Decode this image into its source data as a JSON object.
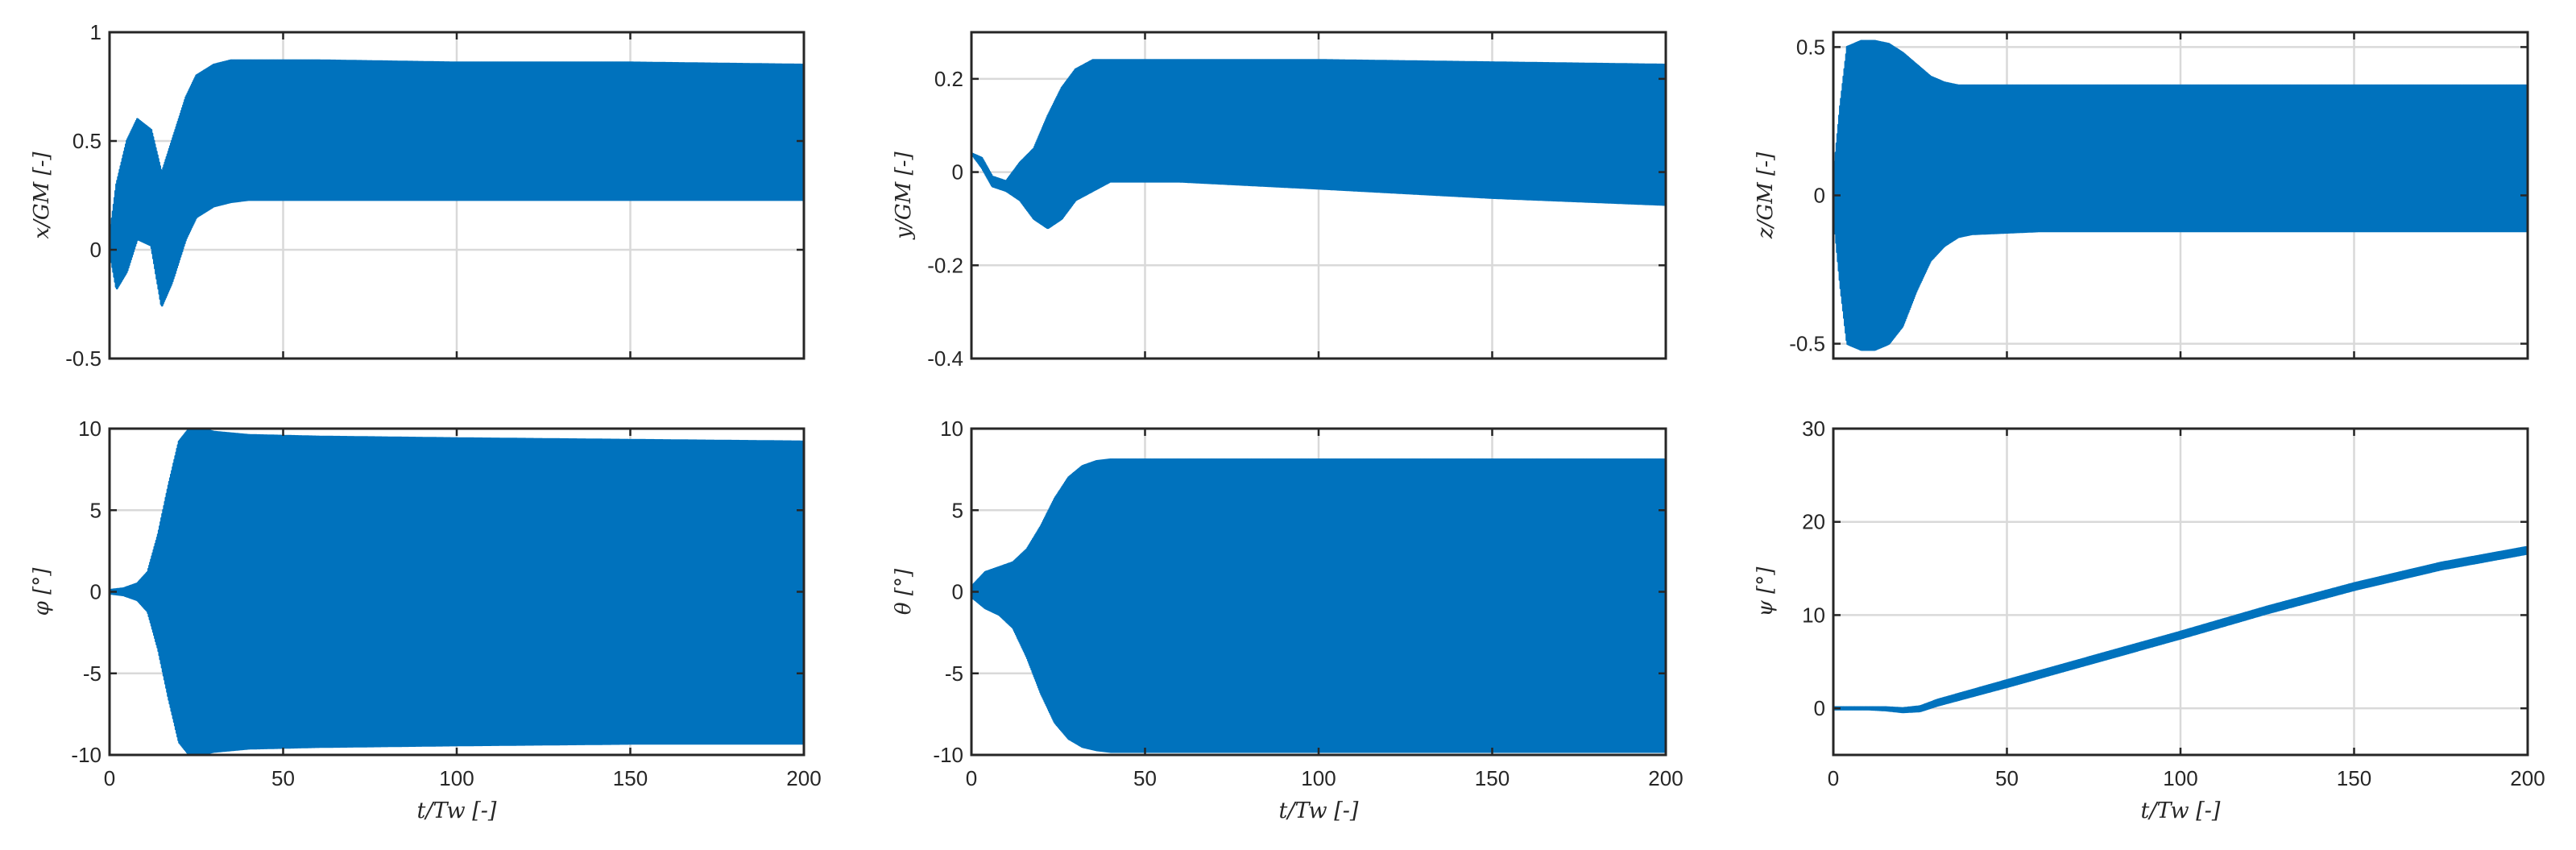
{
  "chart_data": [
    {
      "id": "x",
      "type": "line",
      "ylabel": "x/GM [-]",
      "xlabel": "",
      "xlim": [
        0,
        200
      ],
      "ylim": [
        -0.5,
        1
      ],
      "xticks": [
        0,
        50,
        100,
        150,
        200
      ],
      "xtick_labels_shown": false,
      "yticks": [
        -0.5,
        0,
        0.5,
        1
      ],
      "ytick_labels": [
        "-0.5",
        "0",
        "0.5",
        "1"
      ],
      "grid": true,
      "series": [
        {
          "color": "#0072BD",
          "oscillating": true,
          "envelope_x": [
            0,
            2,
            5,
            8,
            12,
            15,
            18,
            22,
            25,
            30,
            35,
            40,
            60,
            100,
            150,
            200
          ],
          "upper": [
            0.05,
            0.3,
            0.5,
            0.6,
            0.55,
            0.35,
            0.5,
            0.7,
            0.8,
            0.85,
            0.87,
            0.87,
            0.87,
            0.86,
            0.86,
            0.85
          ],
          "lower": [
            0.0,
            -0.18,
            -0.1,
            0.05,
            0.02,
            -0.26,
            -0.15,
            0.05,
            0.15,
            0.2,
            0.22,
            0.23,
            0.23,
            0.23,
            0.23,
            0.23
          ]
        }
      ]
    },
    {
      "id": "y",
      "type": "line",
      "ylabel": "y/GM [-]",
      "xlabel": "",
      "xlim": [
        0,
        200
      ],
      "ylim": [
        -0.4,
        0.3
      ],
      "xticks": [
        0,
        50,
        100,
        150,
        200
      ],
      "xtick_labels_shown": false,
      "yticks": [
        -0.4,
        -0.2,
        0,
        0.2
      ],
      "ytick_labels": [
        "-0.4",
        "-0.2",
        "0",
        "0.2"
      ],
      "grid": true,
      "series": [
        {
          "color": "#0072BD",
          "oscillating": true,
          "envelope_x": [
            0,
            3,
            6,
            10,
            14,
            18,
            22,
            26,
            30,
            35,
            40,
            60,
            100,
            150,
            200
          ],
          "upper": [
            0.04,
            0.03,
            -0.01,
            -0.02,
            0.02,
            0.05,
            0.12,
            0.18,
            0.22,
            0.24,
            0.24,
            0.24,
            0.24,
            0.235,
            0.23
          ],
          "lower": [
            0.04,
            0.01,
            -0.03,
            -0.04,
            -0.06,
            -0.1,
            -0.12,
            -0.1,
            -0.06,
            -0.04,
            -0.02,
            -0.02,
            -0.035,
            -0.055,
            -0.07
          ]
        }
      ]
    },
    {
      "id": "z",
      "type": "line",
      "ylabel": "z/GM [-]",
      "xlabel": "",
      "xlim": [
        0,
        200
      ],
      "ylim": [
        -0.55,
        0.55
      ],
      "xticks": [
        0,
        50,
        100,
        150,
        200
      ],
      "xtick_labels_shown": false,
      "yticks": [
        -0.5,
        0,
        0.5
      ],
      "ytick_labels": [
        "-0.5",
        "0",
        "0.5"
      ],
      "grid": true,
      "series": [
        {
          "color": "#0072BD",
          "oscillating": true,
          "envelope_x": [
            0,
            2,
            4,
            8,
            12,
            16,
            20,
            24,
            28,
            32,
            36,
            40,
            60,
            100,
            150,
            200
          ],
          "upper": [
            0.05,
            0.3,
            0.5,
            0.52,
            0.52,
            0.51,
            0.48,
            0.44,
            0.4,
            0.38,
            0.37,
            0.37,
            0.37,
            0.37,
            0.37,
            0.37
          ],
          "lower": [
            -0.05,
            -0.3,
            -0.5,
            -0.52,
            -0.52,
            -0.5,
            -0.44,
            -0.32,
            -0.22,
            -0.17,
            -0.14,
            -0.13,
            -0.12,
            -0.12,
            -0.12,
            -0.12
          ]
        }
      ]
    },
    {
      "id": "phi",
      "type": "line",
      "ylabel": "φ [°]",
      "xlabel": "t/Tw [-]",
      "xlim": [
        0,
        200
      ],
      "ylim": [
        -10,
        10
      ],
      "xticks": [
        0,
        50,
        100,
        150,
        200
      ],
      "xtick_labels": [
        "0",
        "50",
        "100",
        "150",
        "200"
      ],
      "yticks": [
        -10,
        -5,
        0,
        5,
        10
      ],
      "ytick_labels": [
        "-10",
        "-5",
        "0",
        "5",
        "10"
      ],
      "grid": true,
      "series": [
        {
          "color": "#0072BD",
          "oscillating": true,
          "envelope_x": [
            0,
            4,
            8,
            11,
            14,
            17,
            20,
            23,
            26,
            30,
            40,
            60,
            100,
            150,
            200
          ],
          "upper": [
            0.1,
            0.2,
            0.5,
            1.2,
            3.5,
            6.5,
            9.2,
            10,
            10,
            9.8,
            9.6,
            9.5,
            9.4,
            9.3,
            9.2
          ],
          "lower": [
            -0.1,
            -0.2,
            -0.5,
            -1.2,
            -3.5,
            -6.5,
            -9.2,
            -10,
            -10,
            -9.8,
            -9.6,
            -9.5,
            -9.4,
            -9.3,
            -9.3
          ]
        }
      ]
    },
    {
      "id": "theta",
      "type": "line",
      "ylabel": "θ [°]",
      "xlabel": "t/Tw [-]",
      "xlim": [
        0,
        200
      ],
      "ylim": [
        -10,
        10
      ],
      "xticks": [
        0,
        50,
        100,
        150,
        200
      ],
      "xtick_labels": [
        "0",
        "50",
        "100",
        "150",
        "200"
      ],
      "yticks": [
        -10,
        -5,
        0,
        5,
        10
      ],
      "ytick_labels": [
        "-10",
        "-5",
        "0",
        "5",
        "10"
      ],
      "grid": true,
      "series": [
        {
          "color": "#0072BD",
          "oscillating": true,
          "envelope_x": [
            0,
            4,
            8,
            12,
            16,
            20,
            24,
            28,
            32,
            36,
            40,
            60,
            100,
            150,
            200
          ],
          "upper": [
            0.3,
            1.2,
            1.5,
            1.8,
            2.6,
            4.0,
            5.7,
            7.0,
            7.7,
            8.0,
            8.1,
            8.1,
            8.1,
            8.1,
            8.1
          ],
          "lower": [
            -0.3,
            -1.0,
            -1.4,
            -2.2,
            -4.0,
            -6.2,
            -8.0,
            -9.0,
            -9.5,
            -9.7,
            -9.8,
            -9.8,
            -9.8,
            -9.8,
            -9.8
          ]
        }
      ]
    },
    {
      "id": "psi",
      "type": "line",
      "ylabel": "ψ [°]",
      "xlabel": "t/Tw [-]",
      "xlim": [
        0,
        200
      ],
      "ylim": [
        -5,
        30
      ],
      "xticks": [
        0,
        50,
        100,
        150,
        200
      ],
      "xtick_labels": [
        "0",
        "50",
        "100",
        "150",
        "200"
      ],
      "yticks": [
        0,
        10,
        20,
        30
      ],
      "ytick_labels": [
        "0",
        "10",
        "20",
        "30"
      ],
      "grid": true,
      "series": [
        {
          "color": "#0072BD",
          "oscillating": true,
          "envelope_x": [
            0,
            10,
            15,
            20,
            25,
            30,
            50,
            75,
            100,
            125,
            150,
            175,
            200
          ],
          "upper": [
            0.1,
            0.1,
            0.1,
            0.0,
            0.2,
            0.9,
            3.0,
            5.6,
            8.2,
            10.9,
            13.4,
            15.6,
            17.3
          ],
          "lower": [
            -0.1,
            -0.1,
            -0.2,
            -0.4,
            -0.3,
            0.3,
            2.3,
            4.9,
            7.5,
            10.2,
            12.7,
            14.9,
            16.6
          ]
        }
      ]
    }
  ]
}
